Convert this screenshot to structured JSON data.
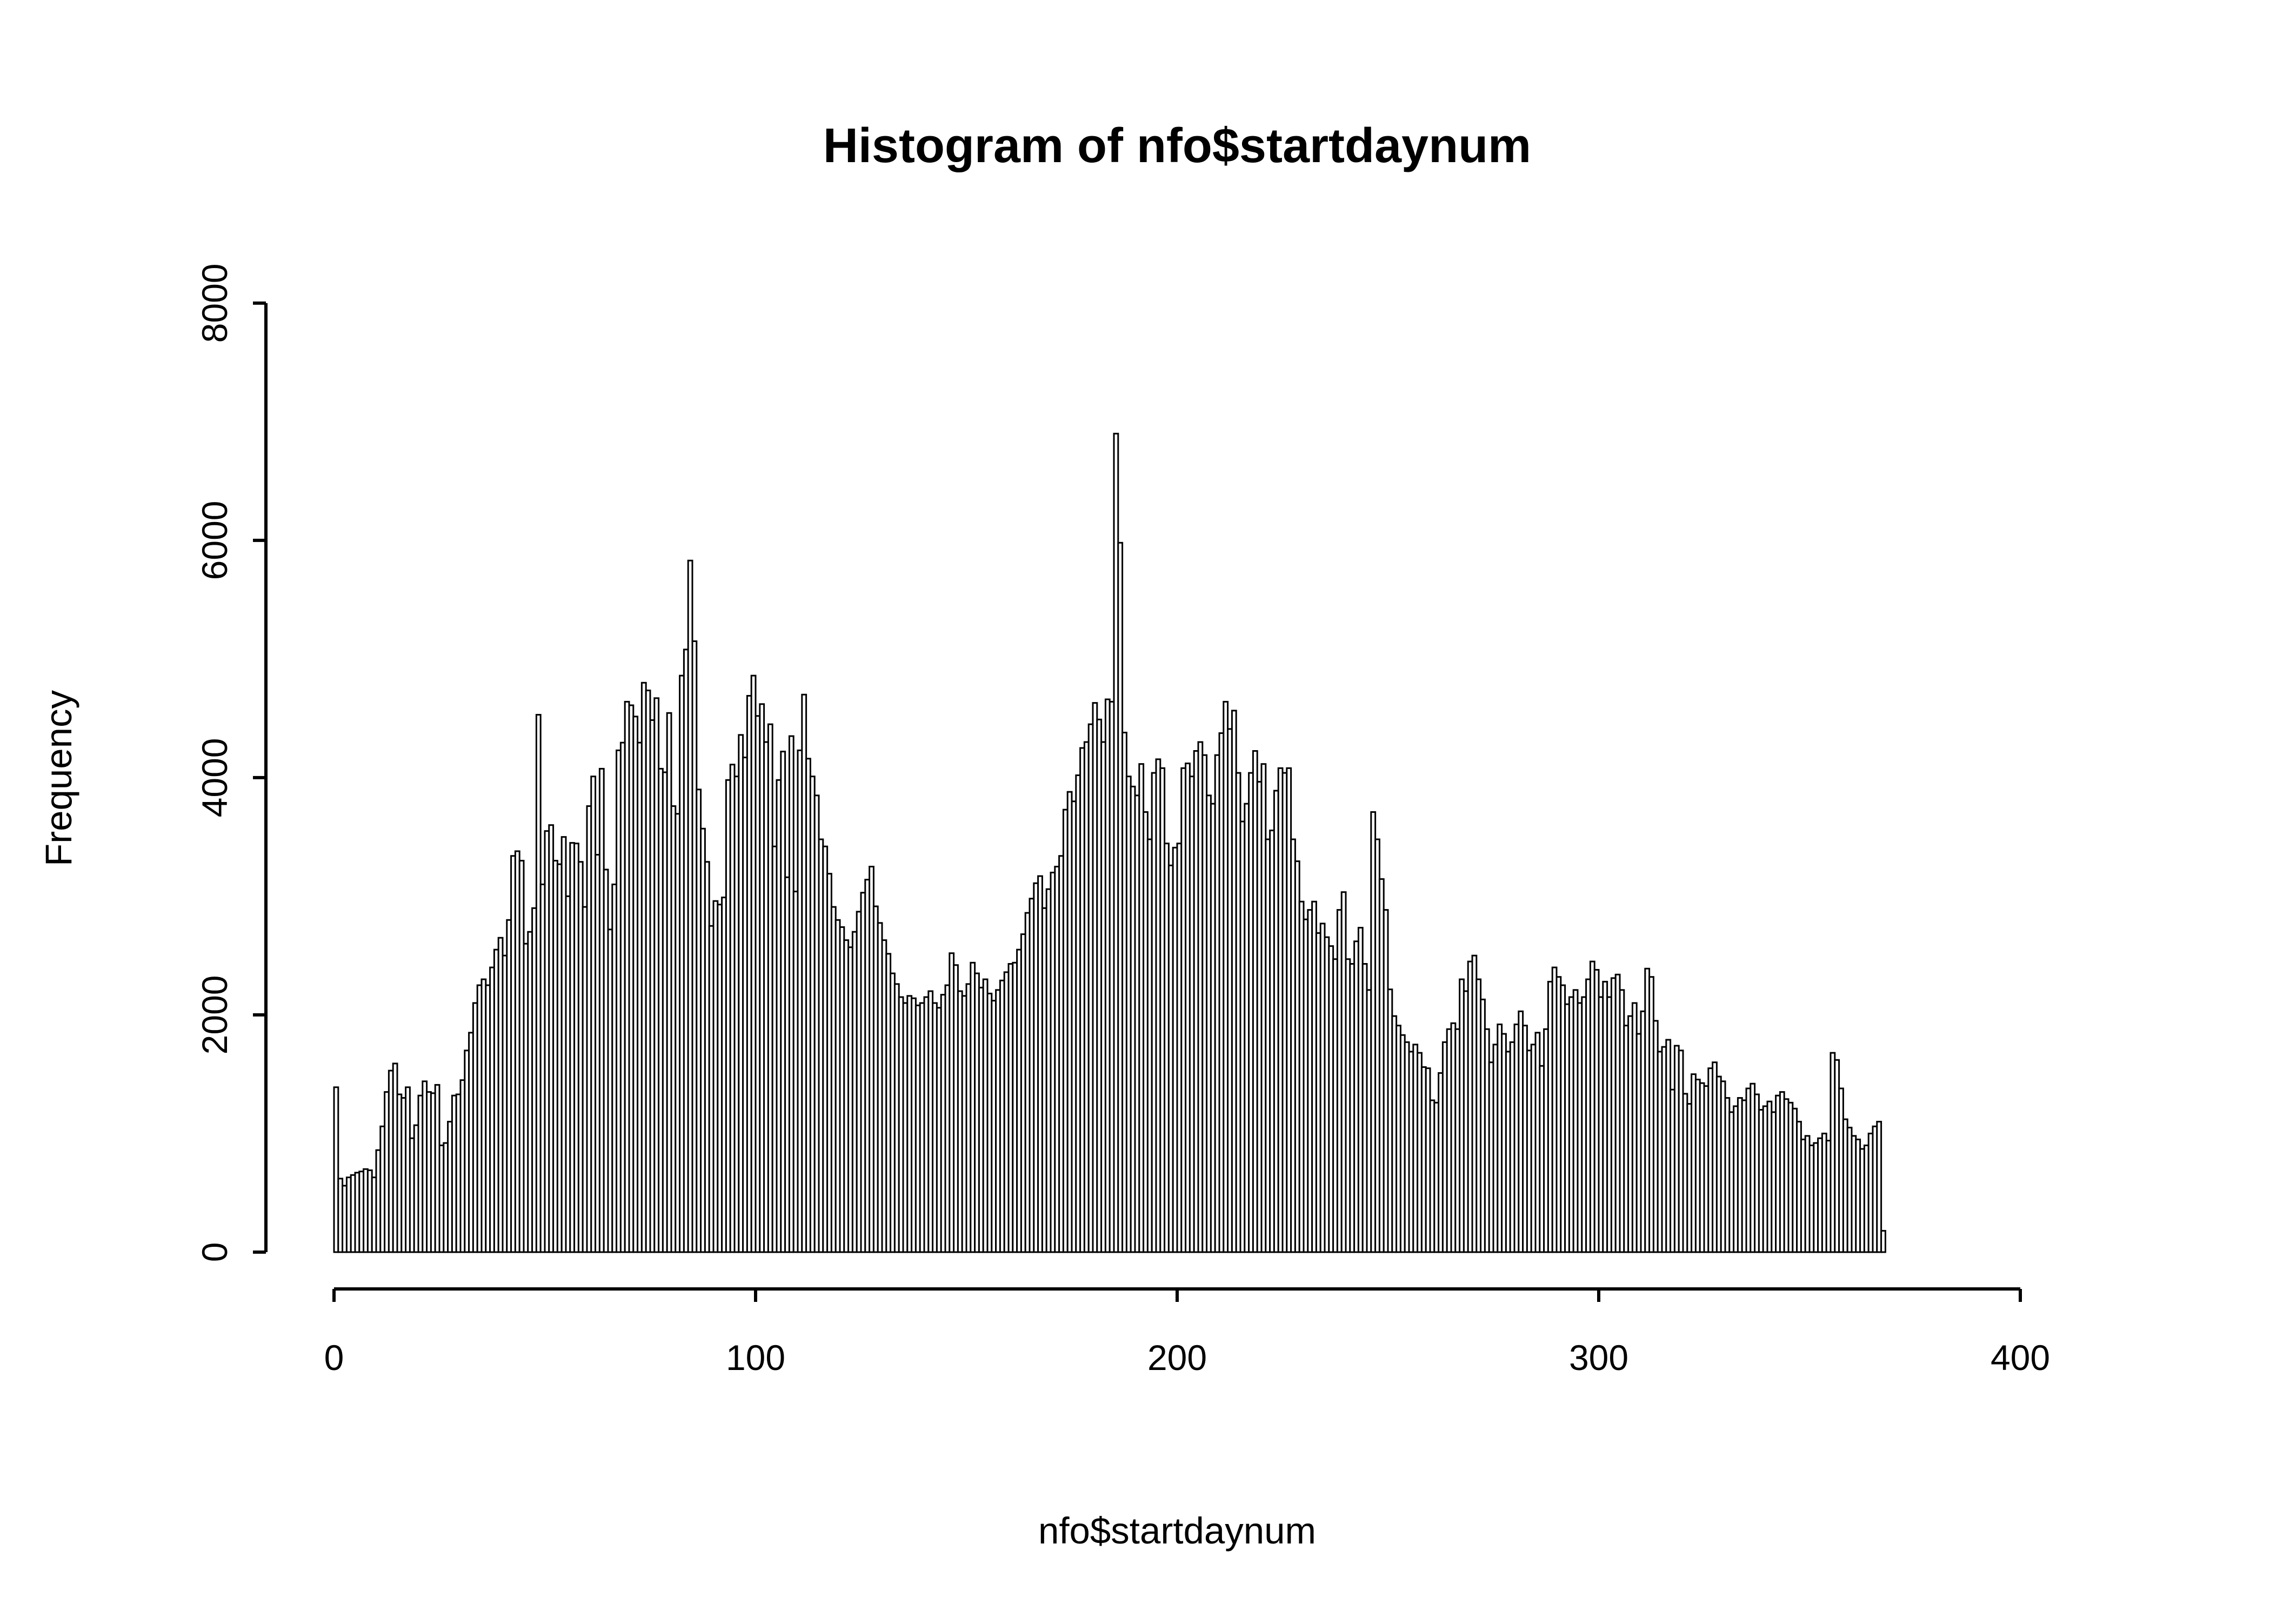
{
  "window": {
    "background_color": "#ffffff",
    "foreground_color": "#000000"
  },
  "chart_data": {
    "type": "bar",
    "subtype": "histogram",
    "title": "Histogram of nfo$startdaynum",
    "xlabel": "nfo$startdaynum",
    "ylabel": "Frequency",
    "xlim": [
      0,
      400
    ],
    "ylim": [
      0,
      8000
    ],
    "x_ticks": [
      0,
      100,
      200,
      300,
      400
    ],
    "y_ticks": [
      0,
      2000,
      4000,
      6000,
      8000
    ],
    "grid": false,
    "legend": false,
    "bar_fill": "#ffffff",
    "bar_stroke": "#000000",
    "axis_color": "#000000",
    "bin_width": 1,
    "bin_start": 0,
    "bin_end": 368,
    "values": [
      1390,
      620,
      560,
      630,
      650,
      670,
      680,
      700,
      690,
      630,
      860,
      1060,
      1350,
      1530,
      1590,
      1330,
      1300,
      1390,
      960,
      1070,
      1320,
      1440,
      1350,
      1340,
      1410,
      900,
      920,
      1100,
      1320,
      1330,
      1450,
      1700,
      1850,
      2100,
      2250,
      2300,
      2250,
      2400,
      2550,
      2650,
      2500,
      2800,
      3340,
      3380,
      3300,
      2600,
      2700,
      2900,
      4530,
      3100,
      3550,
      3600,
      3300,
      3270,
      3500,
      3000,
      3450,
      3445,
      3290,
      2910,
      3760,
      4010,
      3350,
      4075,
      3225,
      2720,
      3100,
      4230,
      4295,
      4640,
      4610,
      4515,
      4295,
      4800,
      4735,
      4485,
      4670,
      4075,
      4045,
      4545,
      3760,
      3695,
      4860,
      5080,
      5830,
      5150,
      3900,
      3570,
      3290,
      2750,
      2960,
      2930,
      2990,
      3980,
      4110,
      4010,
      4360,
      4170,
      4690,
      4860,
      4520,
      4620,
      4300,
      4450,
      3420,
      3980,
      4220,
      3160,
      4350,
      3040,
      4230,
      4700,
      4160,
      4010,
      3850,
      3480,
      3420,
      3190,
      2910,
      2800,
      2740,
      2630,
      2570,
      2700,
      2870,
      3030,
      3140,
      3250,
      2915,
      2775,
      2630,
      2515,
      2350,
      2260,
      2150,
      2100,
      2160,
      2140,
      2080,
      2100,
      2150,
      2200,
      2100,
      2060,
      2170,
      2250,
      2520,
      2420,
      2200,
      2160,
      2260,
      2440,
      2350,
      2230,
      2300,
      2180,
      2120,
      2210,
      2290,
      2360,
      2430,
      2440,
      2550,
      2680,
      2860,
      2980,
      3110,
      3170,
      2900,
      3060,
      3200,
      3250,
      3340,
      3730,
      3880,
      3800,
      4020,
      4250,
      4300,
      4450,
      4630,
      4490,
      4300,
      4660,
      4640,
      6900,
      5980,
      4380,
      4010,
      3925,
      3850,
      4115,
      3710,
      3480,
      4040,
      4155,
      4080,
      3445,
      3260,
      3410,
      3445,
      4080,
      4120,
      4010,
      4225,
      4300,
      4190,
      3850,
      3780,
      4190,
      4375,
      4640,
      4410,
      4565,
      4040,
      3630,
      3780,
      4040,
      4225,
      3965,
      4115,
      3480,
      3555,
      3890,
      4080,
      4040,
      4080,
      3480,
      3295,
      2955,
      2805,
      2885,
      2955,
      2690,
      2770,
      2655,
      2580,
      2470,
      2885,
      3035,
      2470,
      2430,
      2620,
      2735,
      2430,
      2210,
      3710,
      3480,
      3145,
      2885,
      2215,
      1990,
      1910,
      1830,
      1770,
      1690,
      1750,
      1680,
      1560,
      1550,
      1280,
      1260,
      1510,
      1770,
      1880,
      1930,
      1880,
      2300,
      2200,
      2450,
      2500,
      2300,
      2130,
      1880,
      1600,
      1750,
      1920,
      1840,
      1690,
      1770,
      1920,
      2030,
      1910,
      1700,
      1750,
      1850,
      1570,
      1880,
      2280,
      2400,
      2320,
      2250,
      2090,
      2150,
      2210,
      2100,
      2150,
      2300,
      2450,
      2380,
      2150,
      2280,
      2150,
      2310,
      2340,
      2210,
      1910,
      1990,
      2100,
      1840,
      2030,
      2390,
      2320,
      1950,
      1690,
      1730,
      1790,
      1370,
      1740,
      1700,
      1335,
      1250,
      1500,
      1455,
      1425,
      1400,
      1550,
      1600,
      1480,
      1440,
      1300,
      1180,
      1230,
      1300,
      1280,
      1380,
      1420,
      1330,
      1200,
      1230,
      1270,
      1180,
      1320,
      1350,
      1290,
      1260,
      1210,
      1100,
      950,
      980,
      900,
      920,
      960,
      1000,
      940,
      1680,
      1620,
      1380,
      1120,
      1050,
      980,
      950,
      870,
      900,
      1000,
      1060,
      1100,
      180
    ]
  }
}
